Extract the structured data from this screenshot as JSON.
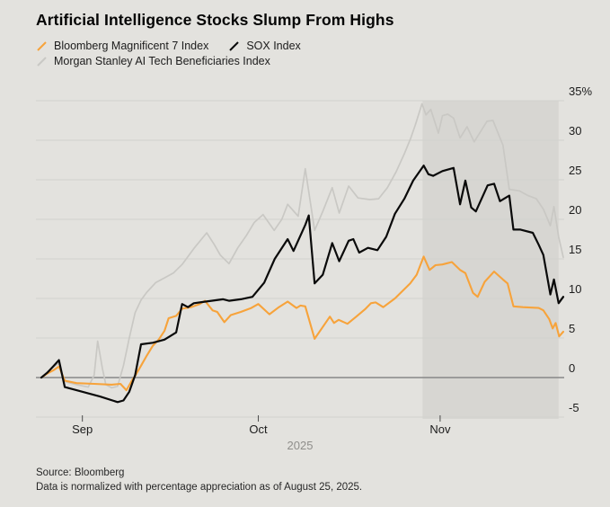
{
  "title": "Artificial Intelligence Stocks Slump From Highs",
  "legend": [
    {
      "label": "Bloomberg Magnificent 7 Index",
      "color": "#f7a33b"
    },
    {
      "label": "SOX Index",
      "color": "#0a0a0a"
    },
    {
      "label": "Morgan Stanley AI Tech Beneficiaries Index",
      "color": "#c9c8c4"
    }
  ],
  "footer": {
    "source": "Source: Bloomberg",
    "note": "Data is normalized with percentage appreciation as of August 25, 2025."
  },
  "colors": {
    "background": "#e3e2de",
    "grid": "#d2d1cd",
    "zero_line": "#878787",
    "highlight_band": "#d7d6d2",
    "axis_text": "#1c1c1c",
    "muted_text": "#8f8e8b",
    "tick_mark": "#4a4a4a"
  },
  "chart_data": {
    "type": "line",
    "title": "Artificial Intelligence Stocks Slump From Highs",
    "x_unit": "days since Aug 25, 2025",
    "x_domain": [
      0,
      89
    ],
    "x_ticks": [
      {
        "day": 7,
        "label": "Sep"
      },
      {
        "day": 37,
        "label": "Oct"
      },
      {
        "day": 68,
        "label": "Nov"
      }
    ],
    "year_label": "2025",
    "y_axis": {
      "min": -5,
      "max": 35,
      "step": 5,
      "ticks": [
        {
          "value": 35,
          "label": "35%"
        },
        {
          "value": 30,
          "label": "30"
        },
        {
          "value": 25,
          "label": "25"
        },
        {
          "value": 20,
          "label": "20"
        },
        {
          "value": 15,
          "label": "15"
        },
        {
          "value": 10,
          "label": "10"
        },
        {
          "value": 5,
          "label": "5"
        },
        {
          "value": 0,
          "label": "0"
        },
        {
          "value": -5,
          "label": "-5"
        }
      ]
    },
    "grid": true,
    "legend_position": "top-left",
    "highlight_band": {
      "from_day": 65,
      "to_day": 88.2
    },
    "series": [
      {
        "name": "Morgan Stanley AI Tech Beneficiaries Index",
        "color": "#c9c8c4",
        "stroke_width": 1.7,
        "points": [
          [
            0,
            0
          ],
          [
            1,
            0.7
          ],
          [
            2,
            1.3
          ],
          [
            3,
            1.8
          ],
          [
            4,
            -0.5
          ],
          [
            6,
            -0.9
          ],
          [
            8,
            -1.2
          ],
          [
            9,
            0.3
          ],
          [
            9.6,
            4.6
          ],
          [
            10.4,
            1.2
          ],
          [
            11,
            -0.9
          ],
          [
            12,
            -1.3
          ],
          [
            13,
            -1.1
          ],
          [
            14,
            1.5
          ],
          [
            15,
            5.0
          ],
          [
            16,
            8.2
          ],
          [
            17,
            9.8
          ],
          [
            18,
            10.8
          ],
          [
            19.5,
            12.0
          ],
          [
            21,
            12.6
          ],
          [
            22.5,
            13.2
          ],
          [
            24,
            14.3
          ],
          [
            26,
            16.3
          ],
          [
            28.2,
            18.3
          ],
          [
            29.5,
            16.8
          ],
          [
            30.5,
            15.5
          ],
          [
            32,
            14.4
          ],
          [
            33.5,
            16.4
          ],
          [
            35,
            18.0
          ],
          [
            36.3,
            19.6
          ],
          [
            37.8,
            20.6
          ],
          [
            39.7,
            18.6
          ],
          [
            41,
            20.0
          ],
          [
            42,
            21.9
          ],
          [
            43.8,
            20.4
          ],
          [
            45,
            26.4
          ],
          [
            46.6,
            18.6
          ],
          [
            48,
            21.0
          ],
          [
            49.6,
            24.0
          ],
          [
            50.8,
            20.8
          ],
          [
            52.4,
            24.2
          ],
          [
            54,
            22.7
          ],
          [
            56,
            22.5
          ],
          [
            57.5,
            22.6
          ],
          [
            59,
            24.0
          ],
          [
            60.5,
            26.0
          ],
          [
            61.9,
            28.3
          ],
          [
            63,
            30.3
          ],
          [
            63.8,
            32.0
          ],
          [
            64.9,
            34.6
          ],
          [
            65.6,
            33.2
          ],
          [
            66.4,
            33.9
          ],
          [
            67.7,
            30.9
          ],
          [
            68.4,
            33.1
          ],
          [
            69.3,
            33.3
          ],
          [
            70.3,
            32.8
          ],
          [
            71.4,
            30.3
          ],
          [
            72.6,
            31.7
          ],
          [
            73.8,
            29.8
          ],
          [
            76,
            32.4
          ],
          [
            77,
            32.5
          ],
          [
            78.7,
            29.4
          ],
          [
            79.8,
            23.8
          ],
          [
            81.5,
            23.6
          ],
          [
            83,
            23.0
          ],
          [
            84.4,
            22.6
          ],
          [
            85.6,
            21.3
          ],
          [
            86.8,
            19.2
          ],
          [
            87.4,
            21.6
          ],
          [
            88.2,
            17.8
          ],
          [
            89,
            15.2
          ]
        ]
      },
      {
        "name": "Bloomberg Magnificent 7 Index",
        "color": "#f7a33b",
        "stroke_width": 2.1,
        "points": [
          [
            0,
            0
          ],
          [
            1,
            0.5
          ],
          [
            2,
            0.9
          ],
          [
            3,
            1.4
          ],
          [
            4,
            -0.4
          ],
          [
            6,
            -0.7
          ],
          [
            9,
            -0.8
          ],
          [
            12,
            -0.9
          ],
          [
            13.5,
            -0.8
          ],
          [
            14.5,
            -1.6
          ],
          [
            15.5,
            -0.3
          ],
          [
            16,
            0.2
          ],
          [
            17,
            1.5
          ],
          [
            18,
            2.8
          ],
          [
            19,
            4.0
          ],
          [
            20,
            4.8
          ],
          [
            21,
            5.9
          ],
          [
            21.7,
            7.5
          ],
          [
            23,
            7.8
          ],
          [
            24,
            8.7
          ],
          [
            25.5,
            8.9
          ],
          [
            27,
            9.3
          ],
          [
            27.9,
            9.7
          ],
          [
            29.2,
            8.5
          ],
          [
            30,
            8.3
          ],
          [
            31.2,
            7.0
          ],
          [
            32.3,
            7.9
          ],
          [
            34,
            8.3
          ],
          [
            35.8,
            8.8
          ],
          [
            37,
            9.3
          ],
          [
            38.9,
            8.0
          ],
          [
            40.5,
            8.9
          ],
          [
            42,
            9.6
          ],
          [
            43.5,
            8.8
          ],
          [
            44.2,
            9.1
          ],
          [
            45,
            9.0
          ],
          [
            46.6,
            4.9
          ],
          [
            48,
            6.4
          ],
          [
            49.2,
            7.7
          ],
          [
            49.9,
            6.9
          ],
          [
            50.7,
            7.3
          ],
          [
            52.2,
            6.8
          ],
          [
            53.7,
            7.7
          ],
          [
            55.3,
            8.7
          ],
          [
            56.2,
            9.4
          ],
          [
            57,
            9.5
          ],
          [
            58.3,
            8.9
          ],
          [
            60.3,
            10.0
          ],
          [
            62.9,
            11.9
          ],
          [
            64,
            13.0
          ],
          [
            65.2,
            15.3
          ],
          [
            66.2,
            13.6
          ],
          [
            67.2,
            14.2
          ],
          [
            68.4,
            14.3
          ],
          [
            70,
            14.6
          ],
          [
            71.4,
            13.6
          ],
          [
            72.3,
            13.2
          ],
          [
            73.6,
            10.7
          ],
          [
            74.4,
            10.2
          ],
          [
            75.6,
            12.1
          ],
          [
            77.2,
            13.4
          ],
          [
            78.7,
            12.4
          ],
          [
            79.5,
            11.9
          ],
          [
            80.5,
            9.0
          ],
          [
            82.1,
            8.9
          ],
          [
            84.8,
            8.8
          ],
          [
            85.6,
            8.5
          ],
          [
            86.6,
            7.4
          ],
          [
            87.2,
            6.2
          ],
          [
            87.7,
            6.9
          ],
          [
            88.3,
            5.2
          ],
          [
            89,
            5.8
          ]
        ]
      },
      {
        "name": "SOX Index",
        "color": "#0a0a0a",
        "stroke_width": 2.2,
        "points": [
          [
            0,
            0
          ],
          [
            1,
            0.6
          ],
          [
            2,
            1.4
          ],
          [
            3,
            2.2
          ],
          [
            4,
            -1.2
          ],
          [
            5,
            -1.4
          ],
          [
            6,
            -1.6
          ],
          [
            8,
            -2.0
          ],
          [
            10,
            -2.4
          ],
          [
            13,
            -3.1
          ],
          [
            14,
            -2.9
          ],
          [
            15,
            -1.8
          ],
          [
            16,
            0.3
          ],
          [
            17,
            4.2
          ],
          [
            19,
            4.4
          ],
          [
            21,
            4.8
          ],
          [
            23,
            5.7
          ],
          [
            24,
            9.3
          ],
          [
            25,
            8.9
          ],
          [
            26,
            9.4
          ],
          [
            28,
            9.6
          ],
          [
            31,
            9.9
          ],
          [
            32,
            9.7
          ],
          [
            34,
            9.9
          ],
          [
            36,
            10.2
          ],
          [
            38,
            12.0
          ],
          [
            39.8,
            15.0
          ],
          [
            42,
            17.5
          ],
          [
            43,
            16.0
          ],
          [
            45,
            19.3
          ],
          [
            45.6,
            20.5
          ],
          [
            46.6,
            11.9
          ],
          [
            48,
            13.0
          ],
          [
            49.6,
            17.0
          ],
          [
            50.8,
            14.7
          ],
          [
            52.4,
            17.3
          ],
          [
            53.2,
            17.5
          ],
          [
            54.2,
            15.8
          ],
          [
            55.7,
            16.4
          ],
          [
            57.3,
            16.1
          ],
          [
            58.8,
            17.8
          ],
          [
            60.3,
            20.7
          ],
          [
            61.9,
            22.6
          ],
          [
            63.4,
            24.9
          ],
          [
            65.2,
            26.8
          ],
          [
            66,
            25.7
          ],
          [
            66.8,
            25.5
          ],
          [
            68.4,
            26.1
          ],
          [
            70.3,
            26.5
          ],
          [
            71.4,
            21.9
          ],
          [
            72.3,
            24.9
          ],
          [
            73.3,
            21.5
          ],
          [
            74.1,
            21.0
          ],
          [
            76.1,
            24.3
          ],
          [
            77.2,
            24.5
          ],
          [
            78.2,
            22.3
          ],
          [
            79.8,
            23.0
          ],
          [
            80.5,
            18.7
          ],
          [
            81.7,
            18.7
          ],
          [
            83.8,
            18.3
          ],
          [
            84.8,
            16.8
          ],
          [
            85.6,
            15.5
          ],
          [
            86.8,
            10.5
          ],
          [
            87.4,
            12.4
          ],
          [
            88.2,
            9.4
          ],
          [
            89,
            10.2
          ]
        ]
      }
    ]
  }
}
